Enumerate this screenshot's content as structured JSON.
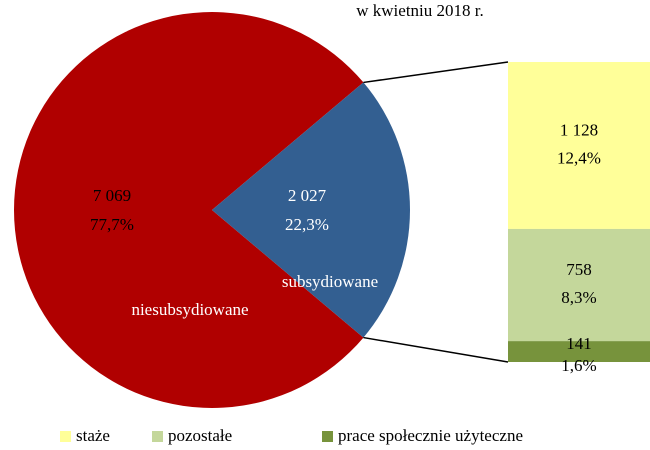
{
  "chart_data": {
    "type": "pie",
    "title": "w kwietniu 2018 r.",
    "pie": {
      "categories": [
        "niesubsydiowane",
        "subsydiowane"
      ],
      "values": [
        7069,
        2027
      ],
      "value_labels": [
        "7 069",
        "2 027"
      ],
      "percents": [
        77.7,
        22.3
      ],
      "percent_labels": [
        "77,7%",
        "22,3%"
      ],
      "colors": [
        "#b00000",
        "#335f91"
      ]
    },
    "bar": {
      "categories": [
        "staże",
        "pozostałe",
        "prace społecznie użyteczne"
      ],
      "values": [
        1128,
        758,
        141
      ],
      "value_labels": [
        "1 128",
        "758",
        "141"
      ],
      "percents": [
        12.4,
        8.3,
        1.6
      ],
      "percent_labels": [
        "12,4%",
        "8,3%",
        "1,6%"
      ],
      "colors": [
        "#ffff99",
        "#c4d79b",
        "#77933c"
      ]
    },
    "legend": "bottom"
  }
}
